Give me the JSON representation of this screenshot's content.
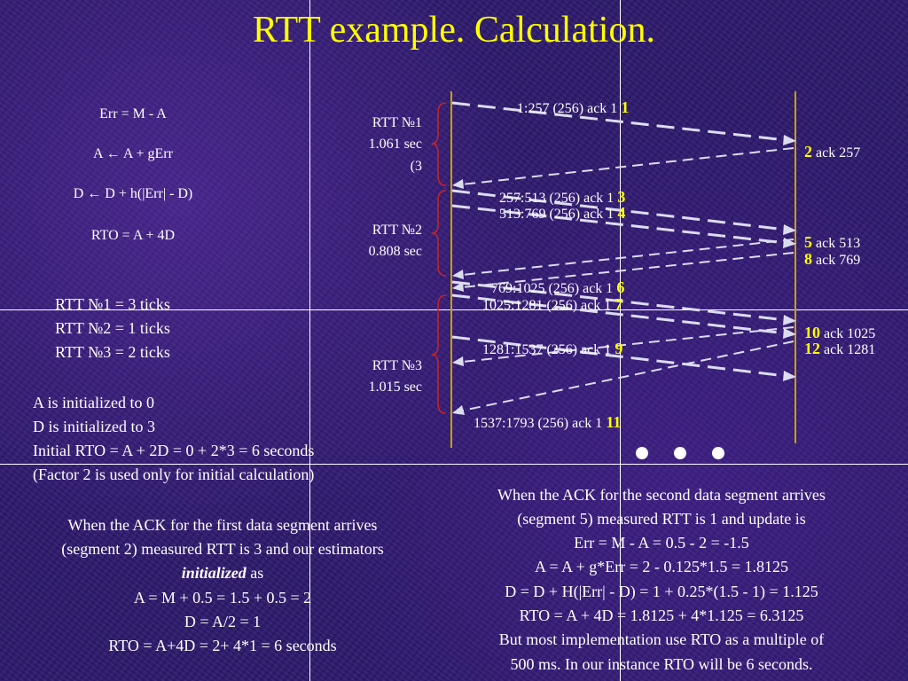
{
  "title": "RTT example. Calculation.",
  "formulas": {
    "f1": "Err = M - A",
    "f2": "A ← A + gErr",
    "f3": "D ← D + h(|Err| - D)",
    "f4": "RTO = A + 4D"
  },
  "ticks": {
    "r1": "RTT №1 = 3 ticks",
    "r2": "RTT №2 = 1 ticks",
    "r3": "RTT №3 = 2 ticks"
  },
  "init": {
    "l1": "A is initialized to 0",
    "l2": "D is initialized to 3",
    "l3": "Initial RTO = A + 2D = 0 + 2*3 = 6 seconds",
    "l4": "(Factor 2 is used only for initial calculation)"
  },
  "first_ack": {
    "l1": "When the ACK for the first data segment arrives",
    "l2": "(segment 2) measured RTT is 3 and our estimators",
    "l3_em": "initialized",
    "l3_rest": " as",
    "l4": "A = M + 0.5 = 1.5 + 0.5 = 2",
    "l5": "D = A/2 = 1",
    "l6": "RTO = A+4D = 2+ 4*1 = 6 seconds"
  },
  "second_ack": {
    "l1": "When the ACK for the second data segment arrives",
    "l2": "(segment 5) measured RTT is 1 and update is",
    "l3": "Err = M - A = 0.5 - 2 = -1.5",
    "l4": "A = A + g*Err = 2 - 0.125*1.5 = 1.8125",
    "l5": "D = D + H(|Err| - D) = 1 + 0.25*(1.5 - 1) = 1.125",
    "l6": "RTO = A + 4D = 1.8125 + 4*1.125 = 6.3125",
    "l7": "But most implementation use RTO as a multiple of",
    "l8": "500 ms. In our instance RTO will be 6 seconds."
  },
  "rtt_labels": {
    "r1_a": "RTT №1",
    "r1_b": "1.061 sec",
    "r1_c": "(3",
    "r2_a": "RTT №2",
    "r2_b": "0.808  sec",
    "r3_a": "RTT №3",
    "r3_b": "1.015 sec"
  },
  "segments": [
    {
      "text": "1:257 (256) ack 1",
      "num": "1"
    },
    {
      "text": "257:513 (256) ack 1",
      "num": "3"
    },
    {
      "text": "513:769 (256) ack 1",
      "num": "4"
    },
    {
      "text": "769:1025 (256) ack 1",
      "num": "6"
    },
    {
      "text": "1025:1281 (256) ack 1",
      "num": "7"
    },
    {
      "text": "1281:1537 (256) ack 1",
      "num": "9"
    },
    {
      "text": "1537:1793 (256) ack 1",
      "num": "11"
    }
  ],
  "acks": [
    {
      "num": "2",
      "text": "ack 257"
    },
    {
      "num": "5",
      "text": "ack 513"
    },
    {
      "num": "8",
      "text": "ack 769"
    },
    {
      "num": "10",
      "text": "ack 1025"
    },
    {
      "num": "12",
      "text": "ack 1281"
    }
  ],
  "colors": {
    "title": "#ffff00",
    "timeline": "#c8a000",
    "arrow": "#dcdcf0",
    "brace": "#cc2222"
  }
}
